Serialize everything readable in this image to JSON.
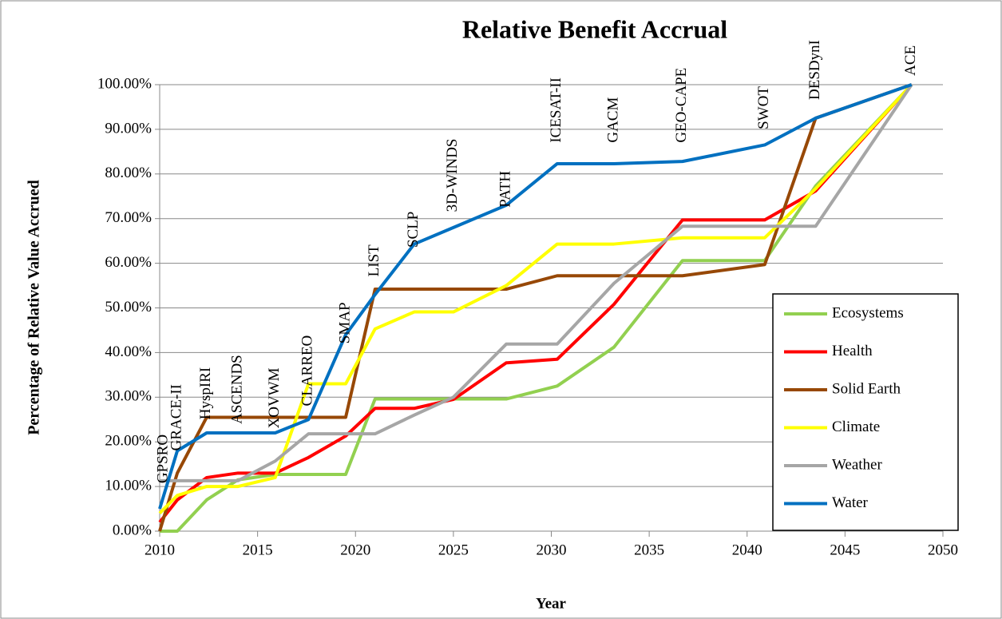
{
  "chart_data": {
    "type": "line",
    "title": "Relative Benefit Accrual",
    "x_label": "Year",
    "y_label": "Percentage of Relative Value Accrued",
    "x": [
      2010,
      2010.9,
      2012.4,
      2014,
      2015.9,
      2017.6,
      2019.5,
      2021,
      2023,
      2025,
      2027.7,
      2030.3,
      2033.2,
      2036.7,
      2040.9,
      2043.5,
      2048.4
    ],
    "series": [
      {
        "name": "Ecosystems",
        "color": "#92d050",
        "values": [
          0,
          0,
          7,
          11.5,
          12.7,
          12.7,
          12.7,
          29.6,
          29.6,
          29.6,
          29.6,
          32.5,
          41.2,
          60.6,
          60.6,
          77.3,
          100
        ]
      },
      {
        "name": "Health",
        "color": "#ff0000",
        "values": [
          2,
          7,
          12,
          13,
          13,
          16.5,
          21.3,
          27.5,
          27.5,
          29.5,
          37.7,
          38.5,
          50.8,
          69.7,
          69.7,
          76.2,
          100
        ]
      },
      {
        "name": "Solid Earth",
        "color": "#974806",
        "values": [
          0,
          13,
          25.5,
          25.5,
          25.5,
          25.5,
          25.5,
          54.2,
          54.2,
          54.2,
          54.2,
          57.2,
          57.2,
          57.2,
          59.7,
          92.5,
          100
        ]
      },
      {
        "name": "Climate",
        "color": "#ffff00",
        "values": [
          4,
          8,
          10,
          10,
          12,
          33,
          33,
          45.3,
          49.1,
          49.1,
          55,
          64.3,
          64.3,
          65.7,
          65.7,
          76.7,
          100
        ]
      },
      {
        "name": "Weather",
        "color": "#a6a6a6",
        "values": [
          11.3,
          11.3,
          11.3,
          11.3,
          15.7,
          21.8,
          21.8,
          21.8,
          26,
          30,
          41.9,
          41.9,
          55.5,
          68.3,
          68.3,
          68.3,
          100
        ]
      },
      {
        "name": "Water",
        "color": "#0070c0",
        "values": [
          5,
          18,
          22,
          22,
          22,
          25,
          44,
          53,
          64.3,
          68,
          73,
          82.3,
          82.3,
          82.8,
          86.5,
          92.5,
          100
        ]
      }
    ],
    "annotations": [
      {
        "text": "GPSRO",
        "x": 2010.2,
        "y": 10.7
      },
      {
        "text": "GRACE-II",
        "x": 2010.9,
        "y": 18
      },
      {
        "text": "HyspIRI",
        "x": 2012.4,
        "y": 25
      },
      {
        "text": "ASCENDS",
        "x": 2014,
        "y": 24
      },
      {
        "text": "XOVWM",
        "x": 2015.9,
        "y": 23
      },
      {
        "text": "CLARREO",
        "x": 2017.6,
        "y": 28
      },
      {
        "text": "SMAP",
        "x": 2019.5,
        "y": 42
      },
      {
        "text": "LIST",
        "x": 2021,
        "y": 57
      },
      {
        "text": "SCLP",
        "x": 2023,
        "y": 63.5
      },
      {
        "text": "3D-WINDS",
        "x": 2025,
        "y": 71.5
      },
      {
        "text": "PATH",
        "x": 2027.7,
        "y": 72.5
      },
      {
        "text": "ICESAT-II",
        "x": 2030.3,
        "y": 87
      },
      {
        "text": "GACM",
        "x": 2033.2,
        "y": 87
      },
      {
        "text": "GEO-CAPE",
        "x": 2036.7,
        "y": 87
      },
      {
        "text": "SWOT",
        "x": 2040.9,
        "y": 90
      },
      {
        "text": "DESDynI",
        "x": 2043.5,
        "y": 96.6
      },
      {
        "text": "ACE",
        "x": 2048.4,
        "y": 102
      }
    ],
    "xlim": [
      2010,
      2050
    ],
    "xticks": [
      2010,
      2015,
      2020,
      2025,
      2030,
      2035,
      2040,
      2045,
      2050
    ],
    "ylim": [
      0,
      100
    ],
    "yticks": [
      {
        "value": 0,
        "label": "0.00%"
      },
      {
        "value": 10,
        "label": "10.00%"
      },
      {
        "value": 20,
        "label": "20.00%"
      },
      {
        "value": 30,
        "label": "30.00%"
      },
      {
        "value": 40,
        "label": "40.00%"
      },
      {
        "value": 50,
        "label": "50.00%"
      },
      {
        "value": 60,
        "label": "60.00%"
      },
      {
        "value": 70,
        "label": "70.00%"
      },
      {
        "value": 80,
        "label": "80.00%"
      },
      {
        "value": 90,
        "label": "90.00%"
      },
      {
        "value": 100,
        "label": "100.00%"
      }
    ],
    "grid": true,
    "legend": "lower right"
  }
}
